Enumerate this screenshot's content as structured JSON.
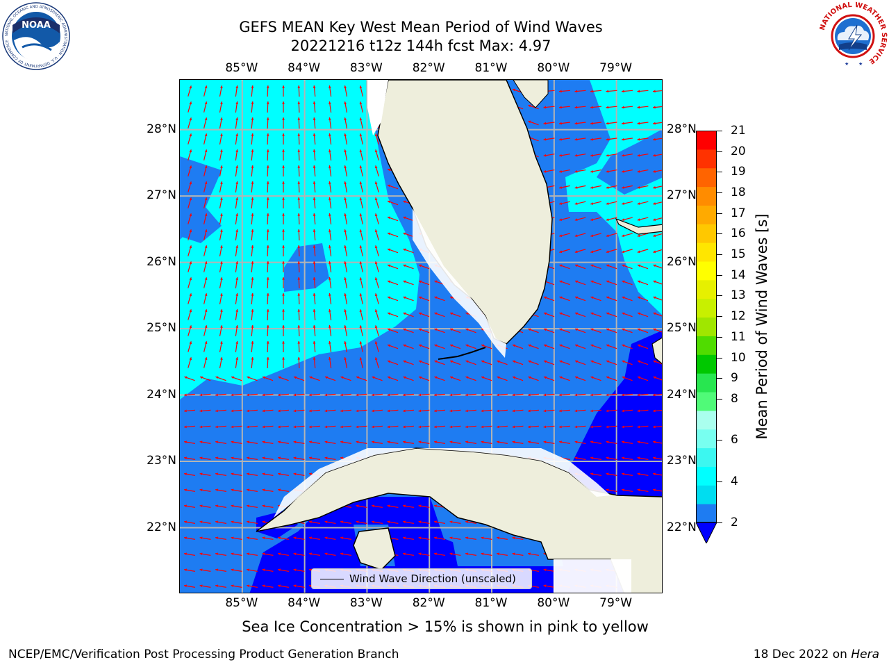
{
  "header": {
    "title_line1": "GEFS MEAN Key West Mean Period of Wind Waves",
    "title_line2": "20221216 t12z 144h fcst   Max: 4.97"
  },
  "map": {
    "lon_labels": [
      "85°W",
      "84°W",
      "83°W",
      "82°W",
      "81°W",
      "80°W",
      "79°W"
    ],
    "lat_labels": [
      "28°N",
      "27°N",
      "26°N",
      "25°N",
      "24°N",
      "23°N",
      "22°N"
    ],
    "extent": {
      "lon_min": -86.0,
      "lon_max": -78.25,
      "lat_min": 21.0,
      "lat_max": 28.75
    },
    "colors": {
      "ocean_low": "#1e7cf2",
      "ocean_mid": "#00ffff",
      "ocean_deep": "#0000ff",
      "land": "#eeeedc",
      "arrow": "#ff0000",
      "grid": "#b4b4b4"
    },
    "legend_label": "Wind Wave Direction (unscaled)"
  },
  "colorbar": {
    "title": "Mean Period of Wind Waves [s]",
    "tick_labels": [
      "21",
      "20",
      "19",
      "18",
      "17",
      "16",
      "15",
      "14",
      "13",
      "12",
      "11",
      "10",
      "9",
      "8",
      "6",
      "4",
      "2"
    ],
    "colors_bottom_to_top": [
      "#1e7cf2",
      "#00ddf0",
      "#00ffff",
      "#3cf7f0",
      "#78fff0",
      "#aaffee",
      "#50fa78",
      "#28e650",
      "#00c800",
      "#50dc00",
      "#a0e600",
      "#c8f000",
      "#e6f000",
      "#ffff00",
      "#ffe600",
      "#ffc800",
      "#ffaa00",
      "#ff8c00",
      "#ff6400",
      "#ff3200",
      "#ff0000"
    ],
    "extend_color": "#0000ff"
  },
  "footer": {
    "caption": "Sea Ice Concentration > 15% is shown in pink to yellow",
    "credit": "NCEP/EMC/Verification Post Processing Product Generation Branch",
    "date": "18 Dec 2022 on",
    "machine": "Hera"
  },
  "logos": {
    "noaa": "NOAA",
    "noaa_ring": "NATIONAL OCEANIC AND ATMOSPHERIC ADMINISTRATION · U.S. DEPARTMENT OF COMMERCE",
    "nws_ring": "NATIONAL WEATHER SERVICE"
  }
}
